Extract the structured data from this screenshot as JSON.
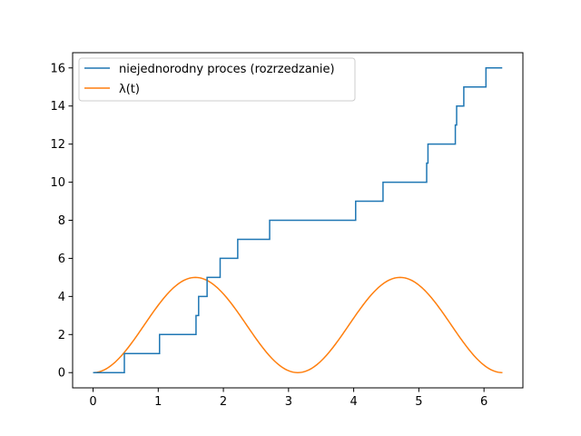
{
  "chart_data": {
    "type": "line",
    "title": "",
    "xlabel": "",
    "ylabel": "",
    "xlim": [
      -0.314,
      6.597
    ],
    "ylim": [
      -0.8,
      16.8
    ],
    "x_ticks": [
      0,
      1,
      2,
      3,
      4,
      5,
      6
    ],
    "y_ticks": [
      0,
      2,
      4,
      6,
      8,
      10,
      12,
      14,
      16
    ],
    "grid": false,
    "legend": {
      "placement": "top-left"
    },
    "series": [
      {
        "name": "niejednorodny proces (rozrzedzanie)",
        "kind": "step",
        "color": "#1f77b4",
        "x": [
          0,
          0.48,
          1.02,
          1.58,
          1.62,
          1.75,
          1.95,
          2.22,
          2.71,
          4.03,
          4.45,
          5.12,
          5.14,
          5.56,
          5.58,
          5.69,
          6.03,
          6.28
        ],
        "y": [
          0,
          1,
          2,
          3,
          4,
          5,
          6,
          7,
          8,
          9,
          10,
          11,
          12,
          13,
          14,
          15,
          16,
          16
        ]
      },
      {
        "name": "λ(t)",
        "kind": "line",
        "color": "#ff7f0e",
        "function": "5*sin(t)^2",
        "domain": [
          0,
          6.283
        ]
      }
    ]
  }
}
